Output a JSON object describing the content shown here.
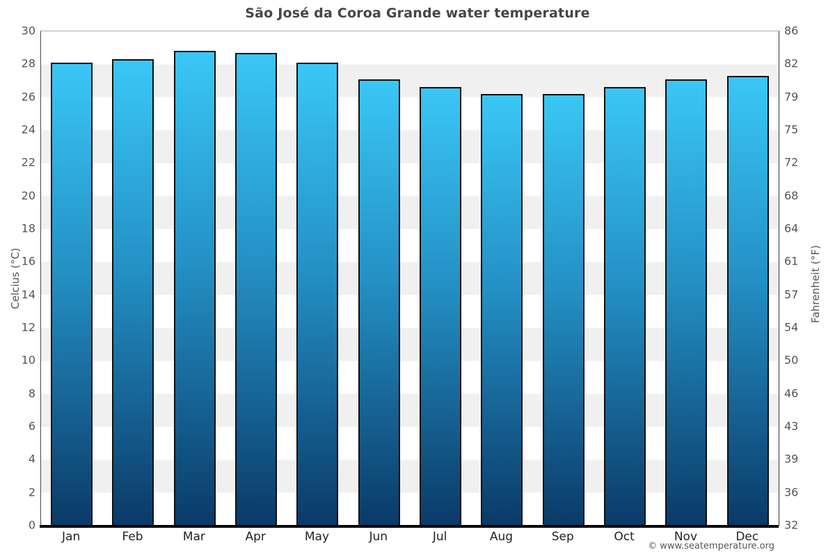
{
  "page": {
    "title": "São José da Coroa Grande water temperature",
    "footer_credit": "© www.seatemperature.org"
  },
  "chart_data": {
    "type": "bar",
    "title": "São José da Coroa Grande water temperature",
    "categories": [
      "Jan",
      "Feb",
      "Mar",
      "Apr",
      "May",
      "Jun",
      "Jul",
      "Aug",
      "Sep",
      "Oct",
      "Nov",
      "Dec"
    ],
    "values": [
      28.1,
      28.3,
      28.8,
      28.7,
      28.1,
      27.1,
      26.6,
      26.2,
      26.2,
      26.6,
      27.1,
      27.3
    ],
    "value_unit": "°C",
    "xlabel": "",
    "ylabel_left": "Celcius (°C)",
    "ylabel_right": "Fahrenheit (°F)",
    "ylim": [
      0,
      30
    ],
    "ytick_step_celsius": 2,
    "yticks_left_top_to_bottom": [
      "30",
      "28",
      "26",
      "24",
      "22",
      "20",
      "18",
      "16",
      "14",
      "12",
      "10",
      "8",
      "6",
      "4",
      "2",
      "0"
    ],
    "yticks_right_top_to_bottom": [
      "86",
      "82",
      "79",
      "75",
      "72",
      "68",
      "64",
      "61",
      "57",
      "54",
      "50",
      "46",
      "43",
      "39",
      "36",
      "32"
    ],
    "grid": "alternating horizontal bands every 2°C",
    "legend_position": "none",
    "colors": {
      "bar_gradient_top": "#3ac7f6",
      "bar_gradient_mid": "#2490c4",
      "bar_gradient_bottom": "#0a3a68",
      "bar_border": "#101010",
      "band_fill": "#f0f0f0",
      "axis_bottom_line": "#000000",
      "title_text": "#454545",
      "tick_text": "#555555"
    }
  }
}
